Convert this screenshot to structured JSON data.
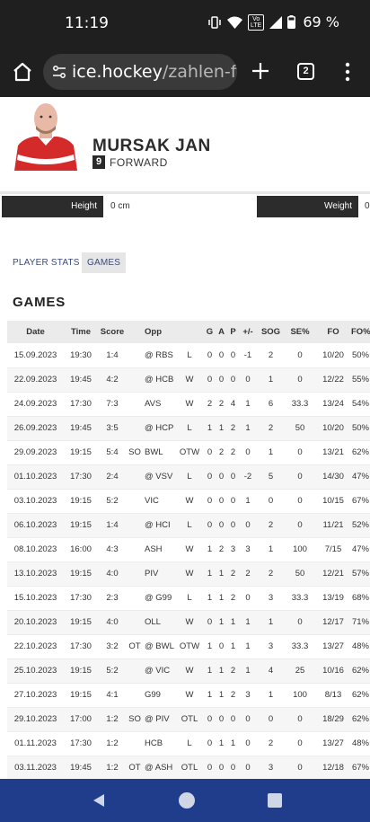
{
  "status_bar": {
    "time": "11:19",
    "battery_pct": "69 %",
    "volte_line1": "Vo",
    "volte_line2": "LTE"
  },
  "browser": {
    "url_domain": "ice.hockey",
    "url_path": "/zahlen-fal",
    "tab_count": "2"
  },
  "player": {
    "name": "MURSAK JAN",
    "number": "9",
    "position": "FORWARD"
  },
  "attributes": {
    "height_label": "Height",
    "height_value": "0 cm",
    "weight_label": "Weight",
    "weight_value": "0"
  },
  "tabs": [
    {
      "label": "PLAYER STATS",
      "active": false
    },
    {
      "label": "GAMES",
      "active": true
    }
  ],
  "section_title": "GAMES",
  "table": {
    "headers": [
      "Date",
      "Time",
      "Score",
      "",
      "Opp",
      "",
      "G",
      "A",
      "P",
      "+/-",
      "SOG",
      "SE%",
      "FO",
      "FO%"
    ],
    "rows": [
      [
        "15.09.2023",
        "19:30",
        "1:4",
        "",
        "@ RBS",
        "L",
        "0",
        "0",
        "0",
        "-1",
        "2",
        "0",
        "10/20",
        "50%"
      ],
      [
        "22.09.2023",
        "19:45",
        "4:2",
        "",
        "@ HCB",
        "W",
        "0",
        "0",
        "0",
        "0",
        "1",
        "0",
        "12/22",
        "55%"
      ],
      [
        "24.09.2023",
        "17:30",
        "7:3",
        "",
        "AVS",
        "W",
        "2",
        "2",
        "4",
        "1",
        "6",
        "33.3",
        "13/24",
        "54%"
      ],
      [
        "26.09.2023",
        "19:45",
        "3:5",
        "",
        "@ HCP",
        "L",
        "1",
        "1",
        "2",
        "1",
        "2",
        "50",
        "10/20",
        "50%"
      ],
      [
        "29.09.2023",
        "19:15",
        "5:4",
        "SO",
        "BWL",
        "OTW",
        "0",
        "2",
        "2",
        "0",
        "1",
        "0",
        "13/21",
        "62%"
      ],
      [
        "01.10.2023",
        "17:30",
        "2:4",
        "",
        "@ VSV",
        "L",
        "0",
        "0",
        "0",
        "-2",
        "5",
        "0",
        "14/30",
        "47%"
      ],
      [
        "03.10.2023",
        "19:15",
        "5:2",
        "",
        "VIC",
        "W",
        "0",
        "0",
        "0",
        "1",
        "0",
        "0",
        "10/15",
        "67%"
      ],
      [
        "06.10.2023",
        "19:15",
        "1:4",
        "",
        "@ HCI",
        "L",
        "0",
        "0",
        "0",
        "0",
        "2",
        "0",
        "11/21",
        "52%"
      ],
      [
        "08.10.2023",
        "16:00",
        "4:3",
        "",
        "ASH",
        "W",
        "1",
        "2",
        "3",
        "3",
        "1",
        "100",
        "7/15",
        "47%"
      ],
      [
        "13.10.2023",
        "19:15",
        "4:0",
        "",
        "PIV",
        "W",
        "1",
        "1",
        "2",
        "2",
        "2",
        "50",
        "12/21",
        "57%"
      ],
      [
        "15.10.2023",
        "17:30",
        "2:3",
        "",
        "@ G99",
        "L",
        "1",
        "1",
        "2",
        "0",
        "3",
        "33.3",
        "13/19",
        "68%"
      ],
      [
        "20.10.2023",
        "19:15",
        "4:0",
        "",
        "OLL",
        "W",
        "0",
        "1",
        "1",
        "1",
        "1",
        "0",
        "12/17",
        "71%"
      ],
      [
        "22.10.2023",
        "17:30",
        "3:2",
        "OT",
        "@ BWL",
        "OTW",
        "1",
        "0",
        "1",
        "1",
        "3",
        "33.3",
        "13/27",
        "48%"
      ],
      [
        "25.10.2023",
        "19:15",
        "5:2",
        "",
        "@ VIC",
        "W",
        "1",
        "1",
        "2",
        "1",
        "4",
        "25",
        "10/16",
        "62%"
      ],
      [
        "27.10.2023",
        "19:15",
        "4:1",
        "",
        "G99",
        "W",
        "1",
        "1",
        "2",
        "3",
        "1",
        "100",
        "8/13",
        "62%"
      ],
      [
        "29.10.2023",
        "17:00",
        "1:2",
        "SO",
        "@ PIV",
        "OTL",
        "0",
        "0",
        "0",
        "0",
        "0",
        "0",
        "18/29",
        "62%"
      ],
      [
        "01.11.2023",
        "17:30",
        "1:2",
        "",
        "HCB",
        "L",
        "0",
        "1",
        "1",
        "0",
        "2",
        "0",
        "13/27",
        "48%"
      ],
      [
        "03.11.2023",
        "19:45",
        "1:2",
        "OT",
        "@ ASH",
        "OTL",
        "0",
        "0",
        "0",
        "0",
        "3",
        "0",
        "12/18",
        "67%"
      ]
    ]
  },
  "icons": {
    "home": "home-icon",
    "site_settings": "tune-icon",
    "new_tab": "plus-icon",
    "menu": "more-vert-icon",
    "nav_back": "back-triangle-icon",
    "nav_home": "home-circle-icon",
    "nav_recents": "recents-square-icon"
  },
  "colors": {
    "system_bar": "#1f1f1f",
    "nav_bar": "#1f3d8a",
    "label_bg": "#2c2c2c",
    "tab_text": "#3a4a7a",
    "jersey_red": "#d42a2a"
  }
}
